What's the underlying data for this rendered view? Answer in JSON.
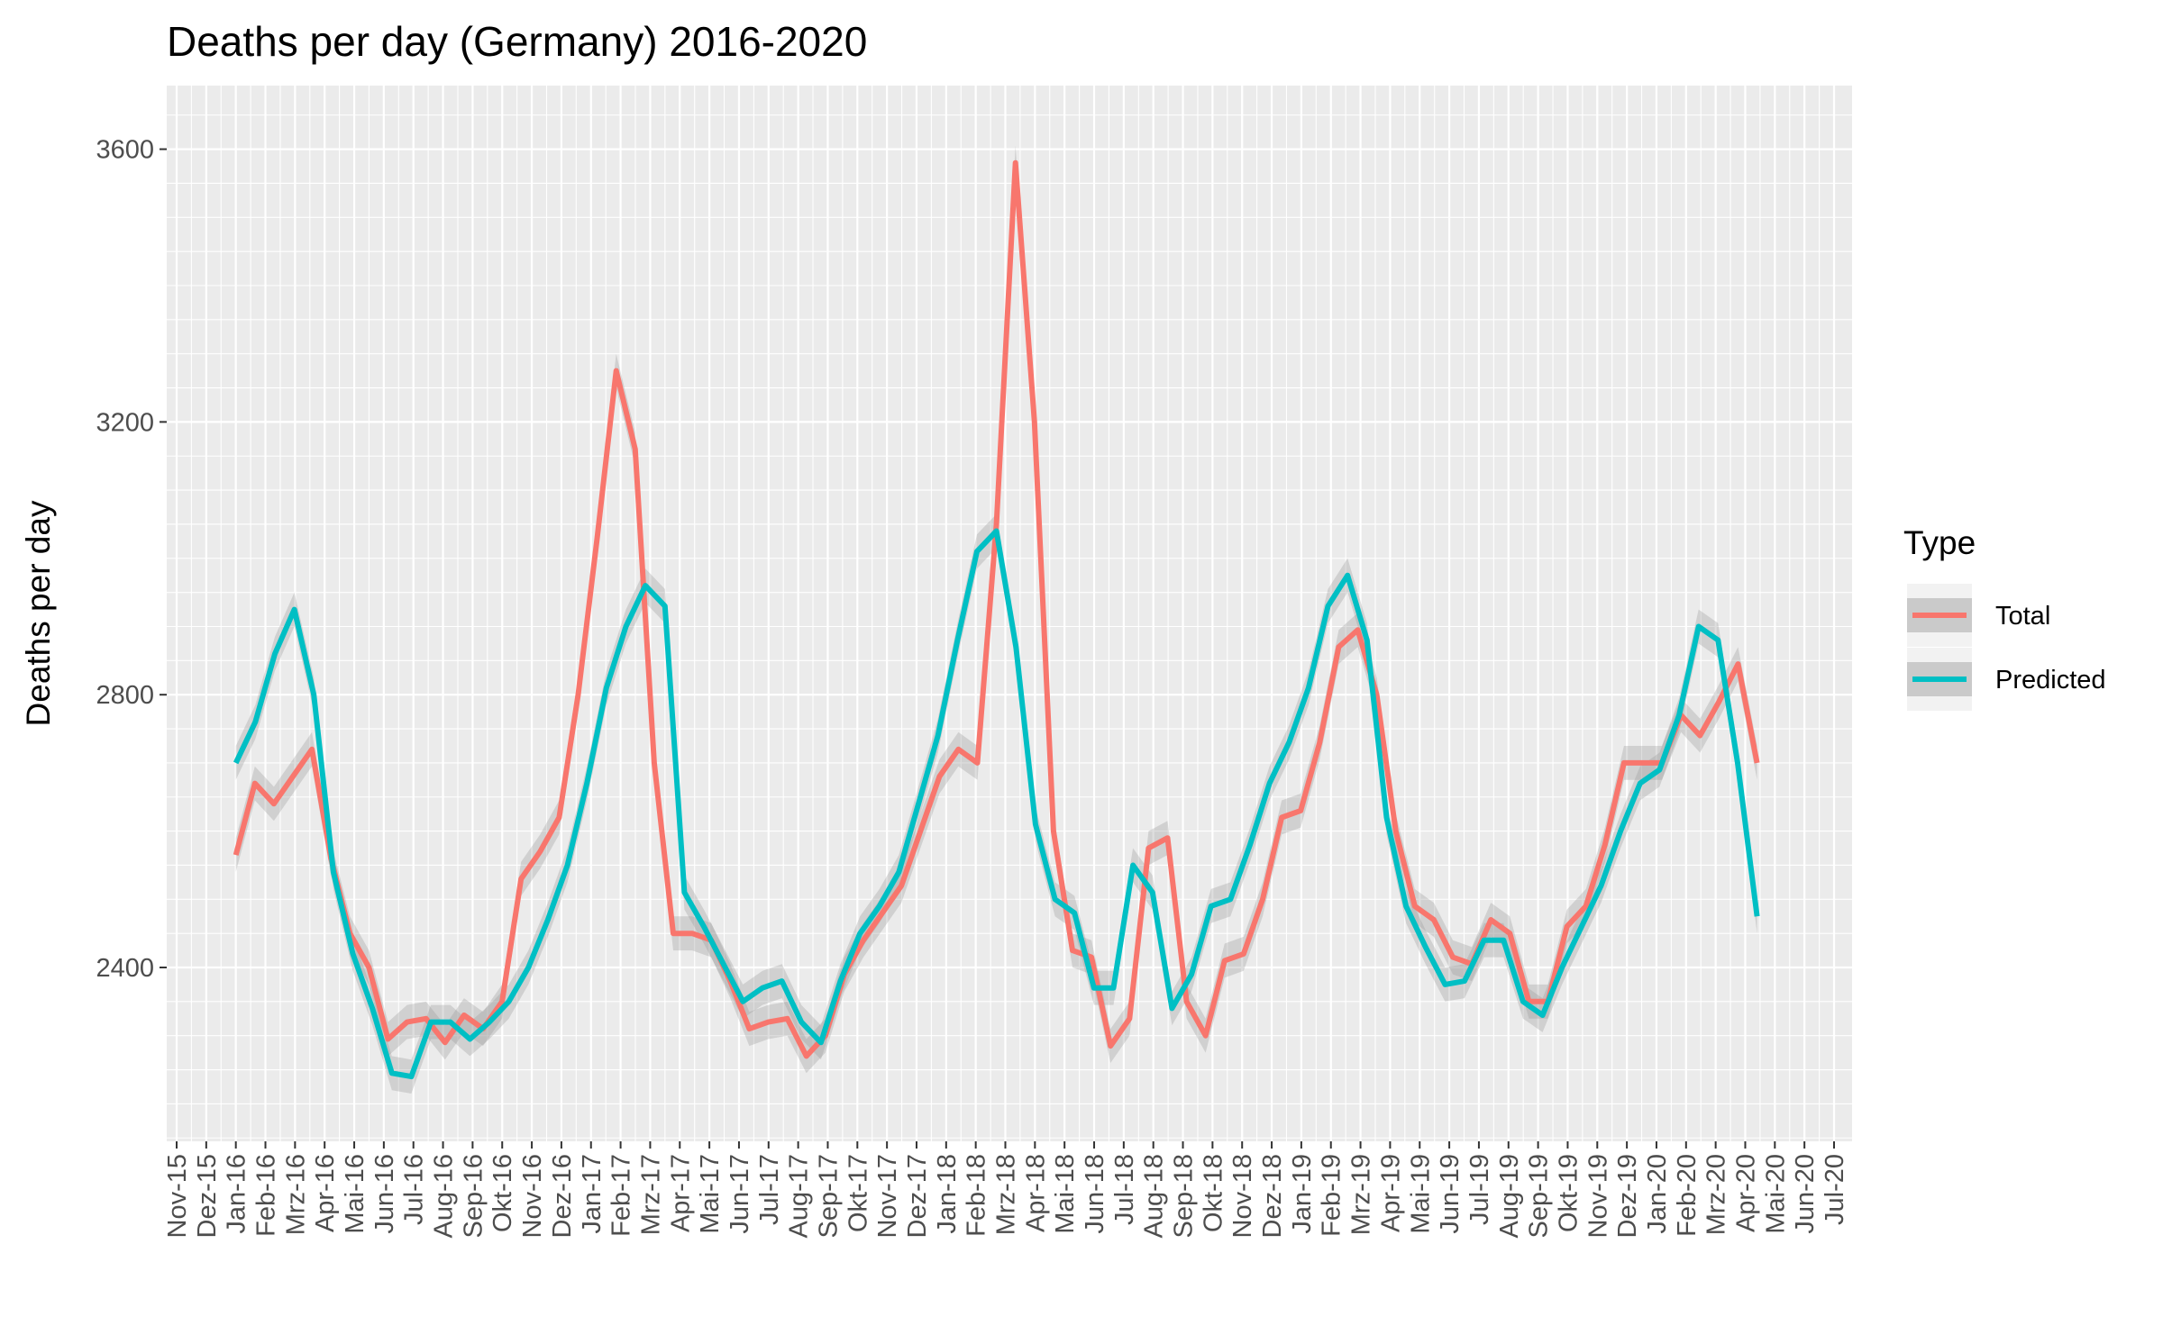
{
  "chart_data": {
    "type": "line",
    "title": "Deaths per day (Germany) 2016-2020",
    "xlabel": "",
    "ylabel": "Deaths per day",
    "ylim": [
      2150,
      3700
    ],
    "yticks": [
      2400,
      2800,
      3200,
      3600
    ],
    "xlim": [
      "2015-11",
      "2020-07"
    ],
    "x_tick_labels": [
      "Nov-15",
      "Dez-15",
      "Jan-16",
      "Feb-16",
      "Mrz-16",
      "Apr-16",
      "Mai-16",
      "Jun-16",
      "Jul-16",
      "Aug-16",
      "Sep-16",
      "Okt-16",
      "Nov-16",
      "Dez-16",
      "Jan-17",
      "Feb-17",
      "Mrz-17",
      "Apr-17",
      "Mai-17",
      "Jun-17",
      "Jul-17",
      "Aug-17",
      "Sep-17",
      "Okt-17",
      "Nov-17",
      "Dez-17",
      "Jan-18",
      "Feb-18",
      "Mrz-18",
      "Apr-18",
      "Mai-18",
      "Jun-18",
      "Jul-18",
      "Aug-18",
      "Sep-18",
      "Okt-18",
      "Nov-18",
      "Dez-18",
      "Jan-19",
      "Feb-19",
      "Mrz-19",
      "Apr-19",
      "Mai-19",
      "Jun-19",
      "Jul-19",
      "Aug-19",
      "Sep-19",
      "Okt-19",
      "Nov-19",
      "Dez-19",
      "Jan-20",
      "Feb-20",
      "Mrz-20",
      "Apr-20",
      "Mai-20",
      "Jun-20",
      "Jul-20"
    ],
    "grid": true,
    "confidence_band": true,
    "legend": {
      "title": "Type",
      "position": "right",
      "entries": [
        "Total",
        "Predicted"
      ]
    },
    "series": [
      {
        "name": "Total",
        "color": "#F8766D",
        "values": [
          2565,
          2670,
          2640,
          2680,
          2720,
          2560,
          2450,
          2400,
          2295,
          2320,
          2325,
          2290,
          2330,
          2310,
          2350,
          2530,
          2570,
          2620,
          2800,
          3030,
          3275,
          3160,
          2700,
          2450,
          2450,
          2440,
          2380,
          2310,
          2320,
          2325,
          2270,
          2300,
          2390,
          2440,
          2480,
          2520,
          2600,
          2680,
          2720,
          2700,
          3050,
          3580,
          3200,
          2600,
          2425,
          2415,
          2285,
          2325,
          2575,
          2590,
          2350,
          2300,
          2410,
          2420,
          2500,
          2620,
          2630,
          2730,
          2870,
          2895,
          2800,
          2600,
          2490,
          2470,
          2415,
          2405,
          2470,
          2450,
          2350,
          2350,
          2460,
          2490,
          2580,
          2700,
          2700,
          2700,
          2770,
          2740,
          2790,
          2845,
          2700
        ]
      },
      {
        "name": "Predicted",
        "color": "#00BFC4",
        "values": [
          2700,
          2760,
          2860,
          2925,
          2800,
          2540,
          2420,
          2340,
          2245,
          2240,
          2320,
          2320,
          2295,
          2320,
          2350,
          2400,
          2470,
          2550,
          2670,
          2810,
          2900,
          2960,
          2930,
          2510,
          2460,
          2405,
          2350,
          2370,
          2380,
          2320,
          2290,
          2380,
          2450,
          2490,
          2540,
          2640,
          2740,
          2880,
          3010,
          3040,
          2870,
          2610,
          2500,
          2480,
          2370,
          2370,
          2550,
          2510,
          2340,
          2390,
          2490,
          2500,
          2580,
          2670,
          2730,
          2810,
          2930,
          2975,
          2880,
          2620,
          2490,
          2430,
          2375,
          2380,
          2440,
          2440,
          2350,
          2330,
          2400,
          2460,
          2520,
          2600,
          2670,
          2690,
          2770,
          2900,
          2880,
          2700,
          2475
        ]
      }
    ]
  }
}
